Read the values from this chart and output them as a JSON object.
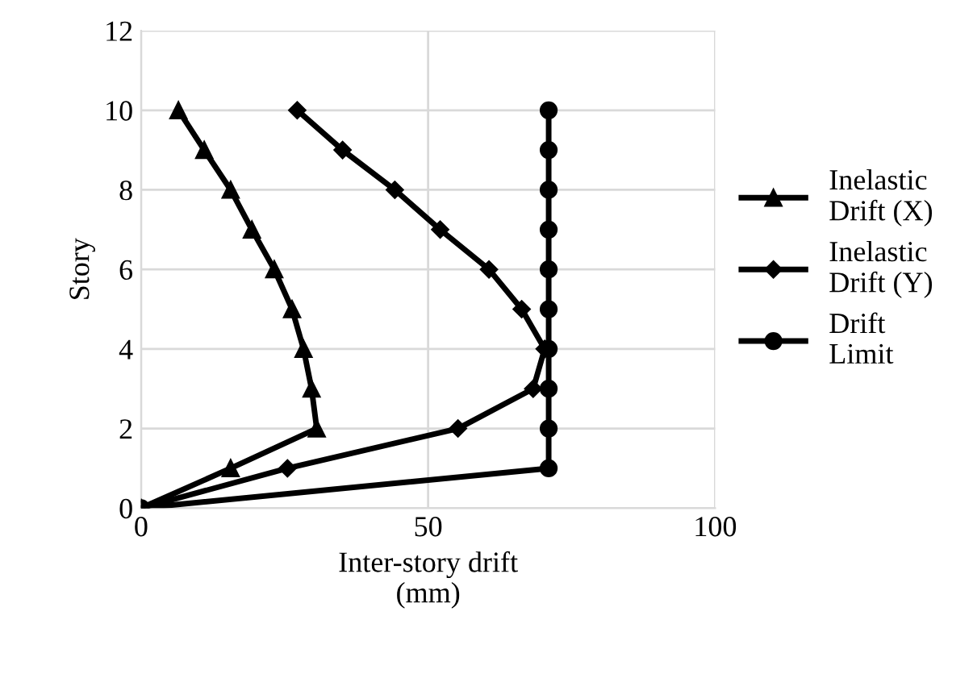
{
  "chart_data": {
    "type": "line",
    "xlabel": "Inter-story drift\n(mm)",
    "ylabel": "Story",
    "xlim": [
      0,
      100
    ],
    "xticks": [
      0,
      50,
      100
    ],
    "ylim": [
      0,
      12
    ],
    "yticks": [
      0,
      2,
      4,
      6,
      8,
      10,
      12
    ],
    "grid": true,
    "legend": "right",
    "line_style": "solid",
    "series": [
      {
        "name": "Inelastic\nDrift (X)",
        "color": "#000000",
        "marker": "triangle",
        "x": [
          0,
          15.6,
          30.6,
          29.7,
          28.3,
          26.3,
          23.2,
          19.3,
          15.6,
          11,
          6.5
        ],
        "values": [
          0,
          1,
          2,
          3,
          4,
          5,
          6,
          7,
          8,
          9,
          10
        ]
      },
      {
        "name": "Inelastic\nDrift (Y)",
        "color": "#000000",
        "marker": "diamond",
        "x": [
          0,
          25.5,
          55.2,
          68.3,
          70.3,
          66.3,
          60.6,
          52.1,
          44.2,
          35.1,
          27.2
        ],
        "values": [
          0,
          1,
          2,
          3,
          4,
          5,
          6,
          7,
          8,
          9,
          10
        ]
      },
      {
        "name": "Drift\nLimit",
        "color": "#000000",
        "marker": "circle",
        "x": [
          0,
          71,
          71,
          71,
          71,
          71,
          71,
          71,
          71,
          71,
          71
        ],
        "values": [
          0,
          1,
          2,
          3,
          4,
          5,
          6,
          7,
          8,
          9,
          10
        ]
      }
    ]
  }
}
